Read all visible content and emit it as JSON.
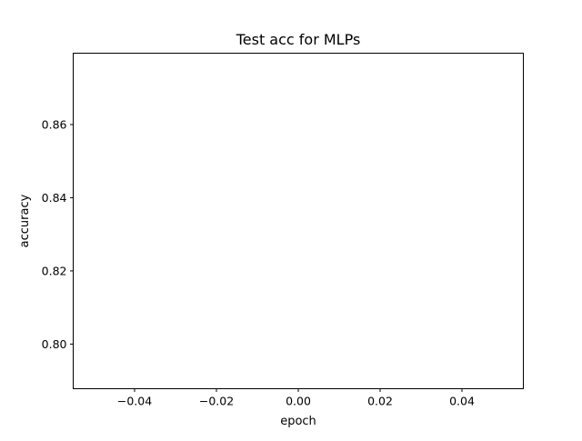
{
  "chart_data": {
    "type": "line",
    "title": "Test acc for MLPs",
    "xlabel": "epoch",
    "ylabel": "accuracy",
    "xlim": [
      -0.055,
      0.055
    ],
    "ylim": [
      0.7878,
      0.8795
    ],
    "xticks": [
      {
        "value": -0.04,
        "label": "−0.04"
      },
      {
        "value": -0.02,
        "label": "−0.02"
      },
      {
        "value": 0.0,
        "label": "0.00"
      },
      {
        "value": 0.02,
        "label": "0.02"
      },
      {
        "value": 0.04,
        "label": "0.04"
      }
    ],
    "yticks": [
      {
        "value": 0.8,
        "label": "0.80"
      },
      {
        "value": 0.82,
        "label": "0.82"
      },
      {
        "value": 0.84,
        "label": "0.84"
      },
      {
        "value": 0.86,
        "label": "0.86"
      }
    ],
    "series": [],
    "grid": false
  }
}
